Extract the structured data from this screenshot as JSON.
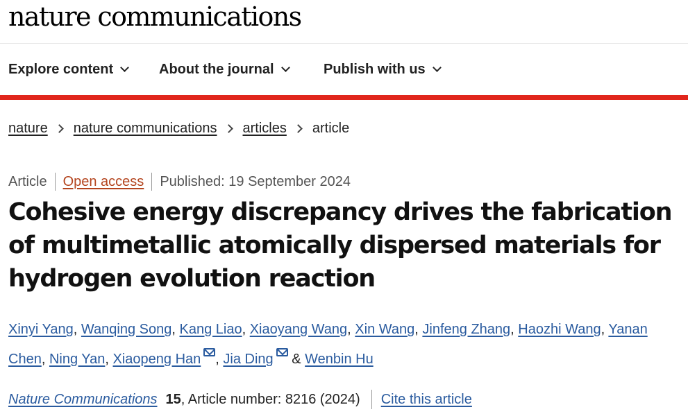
{
  "header": {
    "logo": "nature communications"
  },
  "nav": {
    "items": [
      {
        "label": "Explore content"
      },
      {
        "label": "About the journal"
      },
      {
        "label": "Publish with us"
      }
    ]
  },
  "colors": {
    "accent_bar": "#e1261c",
    "link": "#2a5b9f",
    "open_access": "#b4451f"
  },
  "breadcrumb": {
    "items": [
      "nature",
      "nature communications",
      "articles",
      "article"
    ]
  },
  "meta": {
    "type": "Article",
    "access": "Open access",
    "published": "Published: 19 September 2024"
  },
  "article": {
    "title": "Cohesive energy discrepancy drives the fabrication of multimetallic atomically dispersed materials for hydrogen evolution reaction"
  },
  "authors": {
    "list": [
      "Xinyi Yang",
      "Wanqing Song",
      "Kang Liao",
      "Xiaoyang Wang",
      "Xin Wang",
      "Jinfeng Zhang",
      "Haozhi Wang",
      "Yanan Chen",
      "Ning Yan",
      "Xiaopeng Han",
      "Jia Ding",
      "Wenbin Hu"
    ],
    "separator": ", ",
    "conjunction": " & ",
    "icons": {
      "corresponding": "mail-icon"
    }
  },
  "citation": {
    "journal": "Nature Communications",
    "volume": "15",
    "article_number": ", Article number: 8216 (2024)",
    "cite_label": "Cite this article"
  }
}
